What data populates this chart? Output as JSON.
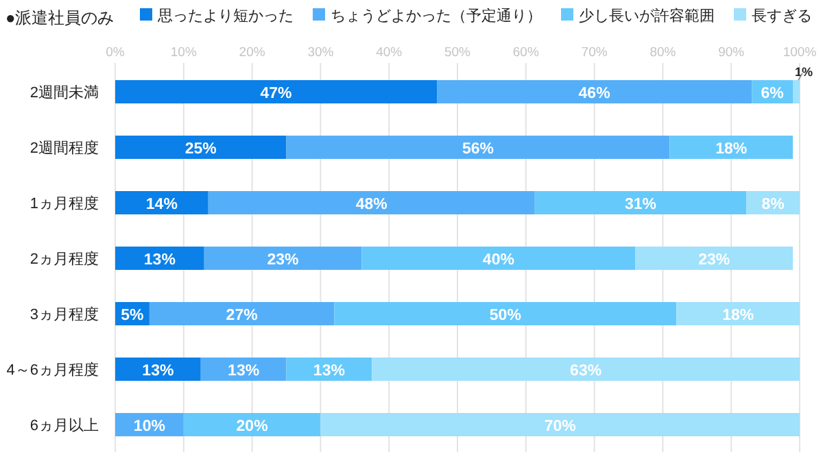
{
  "chart_data": {
    "type": "bar",
    "orientation": "horizontal",
    "stacked": true,
    "title": "●派遣社員のみ",
    "categories": [
      "2週間未満",
      "2週間程度",
      "1ヵ月程度",
      "2ヵ月程度",
      "3ヵ月程度",
      "4～6ヵ月程度",
      "6ヵ月以上"
    ],
    "series": [
      {
        "name": "思ったより短かった",
        "color": "#0a80e8",
        "values": [
          47,
          25,
          13.6,
          13,
          5,
          12.5,
          0
        ],
        "value_labels": [
          "47%",
          "25%",
          "14%",
          "13%",
          "5%",
          "13%",
          null
        ]
      },
      {
        "name": "ちょうどよかった（予定通り）",
        "color": "#55aff8",
        "values": [
          46,
          56,
          47.7,
          23,
          27,
          12.5,
          10
        ],
        "value_labels": [
          "46%",
          "56%",
          "48%",
          "23%",
          "27%",
          "13%",
          "10%"
        ]
      },
      {
        "name": "少し長いが許容範囲",
        "color": "#66c9fb",
        "values": [
          6,
          18,
          30.9,
          40,
          50,
          12.5,
          20
        ],
        "value_labels": [
          "6%",
          "18%",
          "31%",
          "40%",
          "50%",
          "13%",
          "20%"
        ]
      },
      {
        "name": "長すぎる",
        "color": "#a0e1fc",
        "values": [
          1,
          0,
          7.8,
          23,
          18,
          62.5,
          70
        ],
        "value_labels": [
          "1%",
          null,
          "8%",
          "23%",
          "18%",
          "63%",
          "70%"
        ]
      }
    ],
    "xlim": [
      0,
      100
    ],
    "xticks": [
      {
        "value": 0,
        "label": "0%"
      },
      {
        "value": 10,
        "label": "10%"
      },
      {
        "value": 20,
        "label": "20%"
      },
      {
        "value": 30,
        "label": "30%"
      },
      {
        "value": 40,
        "label": "40%"
      },
      {
        "value": 50,
        "label": "50%"
      },
      {
        "value": 60,
        "label": "60%"
      },
      {
        "value": 70,
        "label": "70%"
      },
      {
        "value": 80,
        "label": "80%"
      },
      {
        "value": 90,
        "label": "90%"
      },
      {
        "value": 100,
        "label": "100%"
      }
    ],
    "grid": "x",
    "legend": "top right"
  }
}
